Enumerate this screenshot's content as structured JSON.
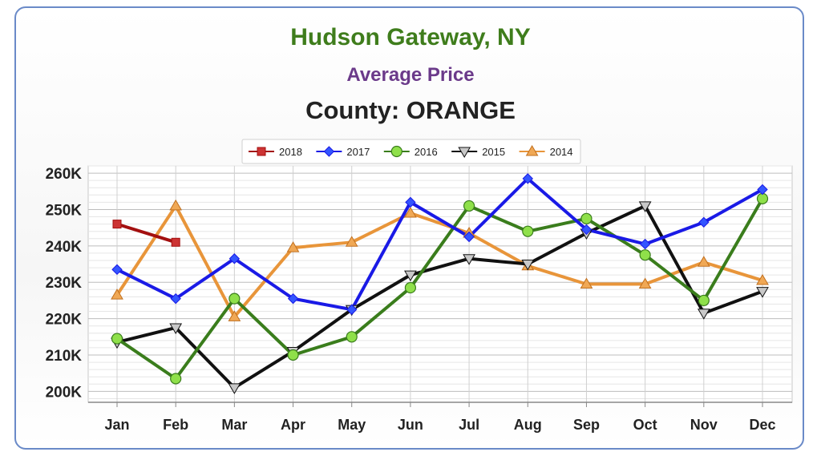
{
  "header": {
    "title": "Hudson Gateway, NY",
    "subtitle": "Average Price",
    "county": "County: ORANGE"
  },
  "colors": {
    "title": "#3f7d1c",
    "subtitle": "#6b3a8a",
    "frame_border": "#6a8ac8"
  },
  "chart_data": {
    "type": "line",
    "title": "Hudson Gateway, NY",
    "subtitle": "Average Price",
    "categories": [
      "Jan",
      "Feb",
      "Mar",
      "Apr",
      "May",
      "Jun",
      "Jul",
      "Aug",
      "Sep",
      "Oct",
      "Nov",
      "Dec"
    ],
    "y_ticks": [
      "200K",
      "210K",
      "220K",
      "230K",
      "240K",
      "250K",
      "260K"
    ],
    "ylim": [
      197000,
      262000
    ],
    "grid": true,
    "legend_position": "top-center",
    "series": [
      {
        "name": "2018",
        "color": "#a30f0f",
        "marker": "square",
        "values": [
          246000,
          241000,
          null,
          null,
          null,
          null,
          null,
          null,
          null,
          null,
          null,
          null
        ]
      },
      {
        "name": "2017",
        "color": "#1a1ae6",
        "marker": "diamond",
        "values": [
          233500,
          225500,
          236500,
          225500,
          222500,
          252000,
          242500,
          258500,
          244500,
          240500,
          246500,
          255500
        ]
      },
      {
        "name": "2016",
        "color": "#3a7d1c",
        "marker": "circle",
        "values": [
          214500,
          203500,
          225500,
          210000,
          215000,
          228500,
          251000,
          244000,
          247500,
          237500,
          225000,
          253000
        ]
      },
      {
        "name": "2015",
        "color": "#111111",
        "marker": "triangle-down",
        "values": [
          213500,
          217500,
          201000,
          211000,
          222500,
          232000,
          236500,
          235000,
          243500,
          251000,
          221500,
          227500
        ]
      },
      {
        "name": "2014",
        "color": "#e8953a",
        "marker": "triangle-up",
        "values": [
          226500,
          251000,
          220500,
          239500,
          241000,
          249000,
          243500,
          234500,
          229500,
          229500,
          235500,
          230500
        ]
      }
    ]
  }
}
